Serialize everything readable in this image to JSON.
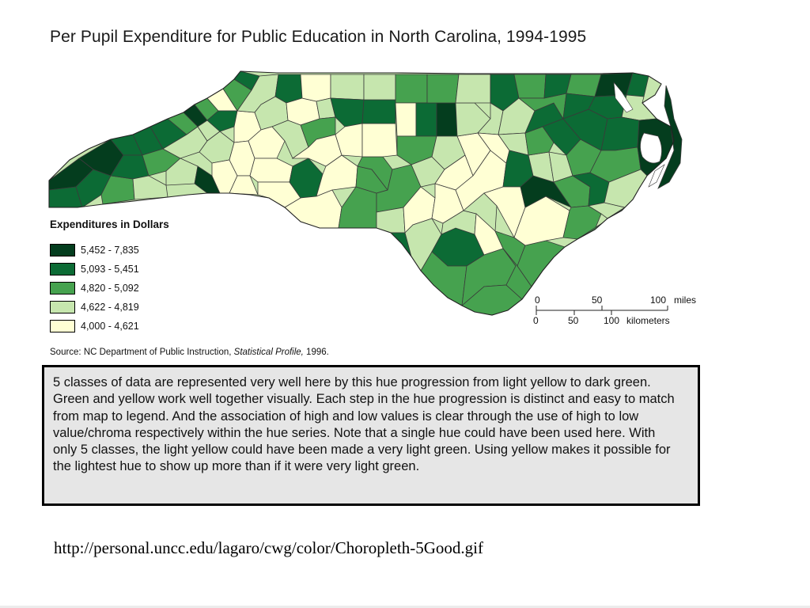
{
  "title": "Per Pupil Expenditure for Public Education in North Carolina, 1994-1995",
  "legend": {
    "title": "Expenditures in Dollars",
    "classes": [
      {
        "label": "5,452 - 7,835",
        "color": "#043d1e"
      },
      {
        "label": "5,093 - 5,451",
        "color": "#0c6b35"
      },
      {
        "label": "4,820 - 5,092",
        "color": "#46a24f"
      },
      {
        "label": "4,622 - 4,819",
        "color": "#c6e6ae"
      },
      {
        "label": "4,000 - 4,621",
        "color": "#ffffd4"
      }
    ]
  },
  "scale_bar": {
    "miles": {
      "ticks": [
        "0",
        "50",
        "100"
      ],
      "unit": "miles"
    },
    "kilometers": {
      "ticks": [
        "0",
        "50",
        "100"
      ],
      "unit": "kilometers"
    }
  },
  "source": {
    "prefix": "Source: NC Department of Public Instruction, ",
    "publication": "Statistical Profile,",
    "year": " 1996."
  },
  "caption": "5 classes of data are represented very well here by this hue progression from light yellow to dark green. Green and yellow work well together visually. Each step in the hue progression is distinct and easy to match from map to legend. And the association of high and low values is clear through the use of high to low value/chroma respectively within the hue series. Note that a single hue could have been used here. With only 5 classes, the light yellow could have been made a very light green. Using yellow makes it possible for the lightest hue to show up more than if it were very light green.",
  "url": "http://personal.uncc.edu/lagaro/cwg/color/Choropleth-5Good.gif"
}
